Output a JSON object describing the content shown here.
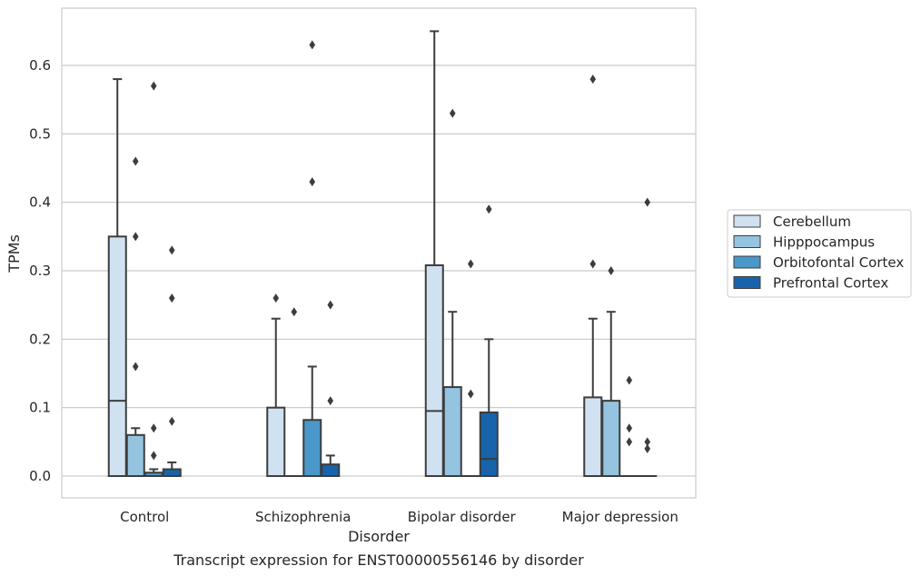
{
  "caption": "Transcript expression for ENST00000556146 by disorder",
  "chart_data": {
    "type": "box",
    "xlabel": "Disorder",
    "ylabel": "TPMs",
    "ylim": [
      -0.03,
      0.68
    ],
    "yticks": [
      0.0,
      0.1,
      0.2,
      0.3,
      0.4,
      0.5,
      0.6
    ],
    "ytick_labels": [
      "0.0",
      "0.1",
      "0.2",
      "0.3",
      "0.4",
      "0.5",
      "0.6"
    ],
    "grid": "horizontal",
    "legend_position": "right",
    "categories": [
      "Control",
      "Schizophrenia",
      "Bipolar disorder",
      "Major depression"
    ],
    "series": [
      {
        "name": "Cerebellum",
        "color": "#d0e1f2",
        "boxes": [
          {
            "q1": 0,
            "median": 0.11,
            "q3": 0.35,
            "whislo": 0,
            "whishi": 0.58,
            "fliers": []
          },
          {
            "q1": 0,
            "median": 0,
            "q3": 0.1,
            "whislo": 0,
            "whishi": 0.23,
            "fliers": [
              0.26
            ]
          },
          {
            "q1": 0,
            "median": 0.095,
            "q3": 0.308,
            "whislo": 0,
            "whishi": 0.65,
            "fliers": []
          },
          {
            "q1": 0,
            "median": 0,
            "q3": 0.115,
            "whislo": 0,
            "whishi": 0.23,
            "fliers": [
              0.31,
              0.58
            ]
          }
        ]
      },
      {
        "name": "Hipppocampus",
        "color": "#94c4df",
        "boxes": [
          {
            "q1": 0,
            "median": 0,
            "q3": 0.06,
            "whislo": 0,
            "whishi": 0.07,
            "fliers": [
              0.16,
              0.35,
              0.46
            ]
          },
          {
            "q1": 0,
            "median": 0,
            "q3": 0,
            "whislo": 0,
            "whishi": 0,
            "fliers": [
              0.24
            ]
          },
          {
            "q1": 0,
            "median": 0,
            "q3": 0.13,
            "whislo": 0,
            "whishi": 0.24,
            "fliers": [
              0.53
            ]
          },
          {
            "q1": 0,
            "median": 0,
            "q3": 0.11,
            "whislo": 0,
            "whishi": 0.24,
            "fliers": [
              0.3
            ]
          }
        ]
      },
      {
        "name": "Orbitofontal Cortex",
        "color": "#4a98c9",
        "boxes": [
          {
            "q1": 0,
            "median": 0,
            "q3": 0.005,
            "whislo": 0,
            "whishi": 0.01,
            "fliers": [
              0.03,
              0.07,
              0.57
            ]
          },
          {
            "q1": 0,
            "median": 0,
            "q3": 0.082,
            "whislo": 0,
            "whishi": 0.16,
            "fliers": [
              0.43,
              0.63
            ]
          },
          {
            "q1": 0,
            "median": 0,
            "q3": 0,
            "whislo": 0,
            "whishi": 0,
            "fliers": [
              0.12,
              0.31
            ]
          },
          {
            "q1": 0,
            "median": 0,
            "q3": 0,
            "whislo": 0,
            "whishi": 0,
            "fliers": [
              0.05,
              0.07,
              0.14
            ]
          }
        ]
      },
      {
        "name": "Prefrontal Cortex",
        "color": "#1764ab",
        "boxes": [
          {
            "q1": 0,
            "median": 0,
            "q3": 0.01,
            "whislo": 0,
            "whishi": 0.02,
            "fliers": [
              0.08,
              0.26,
              0.33
            ]
          },
          {
            "q1": 0,
            "median": 0,
            "q3": 0.017,
            "whislo": 0,
            "whishi": 0.03,
            "fliers": [
              0.11,
              0.25
            ]
          },
          {
            "q1": 0,
            "median": 0.025,
            "q3": 0.093,
            "whislo": 0,
            "whishi": 0.2,
            "fliers": [
              0.39
            ]
          },
          {
            "q1": 0,
            "median": 0,
            "q3": 0,
            "whislo": 0,
            "whishi": 0,
            "fliers": [
              0.04,
              0.05,
              0.4
            ]
          }
        ]
      }
    ]
  }
}
